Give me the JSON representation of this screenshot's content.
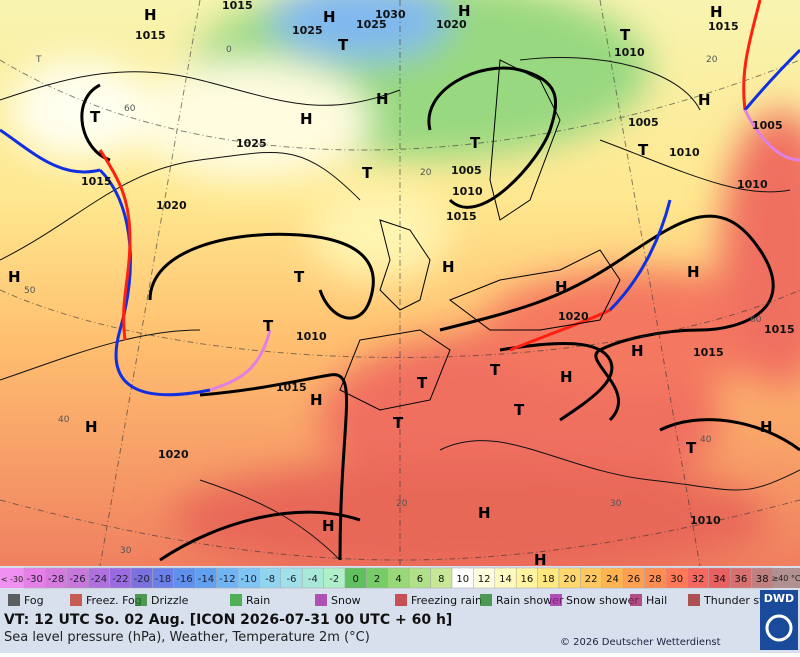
{
  "map_labels": [
    "1015",
    "1015",
    "1025",
    "1030",
    "1025",
    "1020",
    "1015",
    "1010",
    "1025",
    "1020",
    "1005",
    "1010",
    "1015",
    "1005",
    "1010",
    "1005",
    "1010",
    "1015",
    "1010",
    "1015",
    "1020",
    "1015",
    "1015",
    "1020",
    "1010",
    "H",
    "H",
    "H",
    "H",
    "H",
    "H",
    "H",
    "H",
    "H",
    "H",
    "H",
    "H",
    "H",
    "H",
    "H",
    "H",
    "H",
    "H",
    "H",
    "T",
    "T",
    "T",
    "T",
    "T",
    "T",
    "T",
    "T",
    "T",
    "T",
    "T",
    "T",
    "T",
    "T",
    "60",
    "50",
    "40",
    "30",
    "20",
    "60",
    "40",
    "30",
    "20",
    "0",
    "20",
    "10"
  ],
  "temperature_scale": {
    "low_label": "< -30",
    "values": [
      -30,
      -28,
      -26,
      -24,
      -22,
      -20,
      -18,
      -16,
      -14,
      -12,
      -10,
      -8,
      -6,
      -4,
      -2,
      0,
      2,
      4,
      6,
      8,
      10,
      12,
      14,
      16,
      18,
      20,
      22,
      24,
      26,
      28,
      30,
      32,
      34,
      36,
      38
    ],
    "colors": [
      "#e87ee8",
      "#d67ae0",
      "#c878dc",
      "#b070e0",
      "#9a6ae0",
      "#7a70e0",
      "#6a80e8",
      "#6090ee",
      "#60a0f0",
      "#70b4f4",
      "#80c4f4",
      "#90d4f0",
      "#a0e0e8",
      "#a8e8d8",
      "#b0f0c8",
      "#60c060",
      "#78cc68",
      "#98d878",
      "#b0e088",
      "#c8e898",
      "#ffffff",
      "#ffffe0",
      "#fffac0",
      "#fff4a0",
      "#ffe880",
      "#ffd870",
      "#ffc860",
      "#ffb450",
      "#ffa050",
      "#ff8c50",
      "#ff7858",
      "#f46860",
      "#e86060",
      "#d87070",
      "#c08080"
    ],
    "high_label": "≥40 °C"
  },
  "legend_items": [
    "Fog",
    "Freez. Fog",
    "Drizzle",
    "Rain",
    "Snow",
    "Freezing rain",
    "Rain shower",
    "Snow shower",
    "Hail",
    "Thunder storm"
  ],
  "footer": {
    "valid_time": "VT: 12 UTC So.  02 Aug. [ICON 2026-07-31  00 UTC + 60 h]",
    "description": "Sea level pressure (hPa), Weather, Temperature 2m (°C)",
    "copyright": "© 2026 Deutscher Wetterdienst",
    "logo": "DWD"
  }
}
